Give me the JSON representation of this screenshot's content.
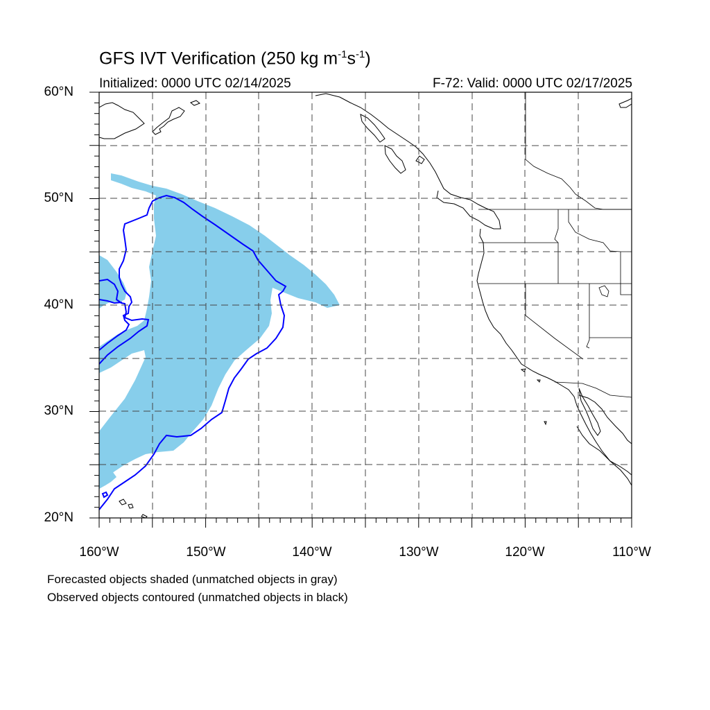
{
  "header": {
    "title_main": "GFS IVT Verification (250 kg m",
    "title_exp1": "-1",
    "title_mid": "s",
    "title_exp2": "-1",
    "title_end": ")",
    "initialized": "Initialized: 0000 UTC 02/14/2025",
    "valid": "F-72: Valid: 0000 UTC 02/17/2025"
  },
  "axes": {
    "lat_labels": [
      "60°N",
      "50°N",
      "40°N",
      "30°N",
      "20°N"
    ],
    "lon_labels": [
      "160°W",
      "150°W",
      "140°W",
      "130°W",
      "120°W",
      "110°W"
    ],
    "lon_range": [
      -160,
      -110
    ],
    "lat_range": [
      20,
      60
    ],
    "grid": "dashed every 5 degrees"
  },
  "legend": {
    "line1": "Forecasted objects shaded (unmatched objects in gray)",
    "line2": "Observed objects contoured (unmatched objects in black)"
  },
  "colors": {
    "forecast_fill": "#87ceeb",
    "observed_contour": "#0000ff",
    "coastline": "#000000",
    "grid": "#444444"
  },
  "objects": {
    "forecast_shaded": "matched forecast IVT object (sky blue)",
    "observed_contour": "matched observed IVT object (blue)"
  }
}
